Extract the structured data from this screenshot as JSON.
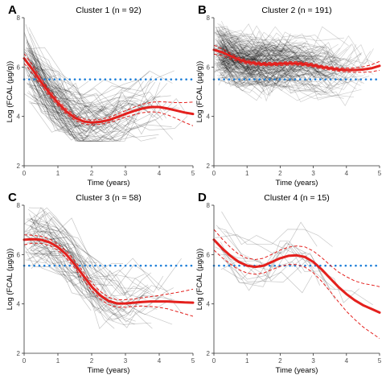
{
  "figure": {
    "letters": [
      "A",
      "B",
      "C",
      "D"
    ]
  },
  "chart_data": [
    {
      "type": "line",
      "title": "Cluster 1 (n = 92)",
      "xlabel": "Time (years)",
      "ylabel": "Log (FCAL (µg/g))",
      "xlim": [
        0,
        5
      ],
      "ylim": [
        2,
        8
      ],
      "xticks": [
        0,
        1,
        2,
        3,
        4,
        5
      ],
      "yticks": [
        2,
        4,
        6,
        8
      ],
      "reference_line": 5.5,
      "fit": {
        "x": [
          0,
          0.25,
          0.5,
          0.75,
          1,
          1.25,
          1.5,
          1.75,
          2,
          2.25,
          2.5,
          2.75,
          3,
          3.25,
          3.5,
          3.75,
          4,
          4.25,
          4.5,
          4.75,
          5
        ],
        "y": [
          6.35,
          5.9,
          5.4,
          4.95,
          4.55,
          4.2,
          3.95,
          3.8,
          3.75,
          3.78,
          3.85,
          3.97,
          4.1,
          4.22,
          4.32,
          4.38,
          4.38,
          4.32,
          4.24,
          4.16,
          4.1
        ],
        "ci_halfwidth": [
          0.2,
          0.17,
          0.15,
          0.13,
          0.12,
          0.11,
          0.1,
          0.1,
          0.1,
          0.1,
          0.11,
          0.12,
          0.13,
          0.15,
          0.17,
          0.19,
          0.22,
          0.26,
          0.32,
          0.4,
          0.48
        ]
      },
      "individual": {
        "count": 92,
        "floor": 3.0,
        "spread": 0.9
      }
    },
    {
      "type": "line",
      "title": "Cluster 2 (n = 191)",
      "xlabel": "Time (years)",
      "ylabel": "Log (FCAL (µg/g))",
      "xlim": [
        0,
        5
      ],
      "ylim": [
        2,
        8
      ],
      "xticks": [
        0,
        1,
        2,
        3,
        4,
        5
      ],
      "yticks": [
        2,
        4,
        6,
        8
      ],
      "reference_line": 5.5,
      "fit": {
        "x": [
          0,
          0.25,
          0.5,
          0.75,
          1,
          1.25,
          1.5,
          1.75,
          2,
          2.25,
          2.5,
          2.75,
          3,
          3.25,
          3.5,
          3.75,
          4,
          4.25,
          4.5,
          4.75,
          5
        ],
        "y": [
          6.7,
          6.6,
          6.45,
          6.3,
          6.2,
          6.15,
          6.12,
          6.12,
          6.13,
          6.15,
          6.15,
          6.12,
          6.07,
          6.0,
          5.95,
          5.9,
          5.88,
          5.88,
          5.9,
          5.95,
          6.05
        ],
        "ci_halfwidth": [
          0.18,
          0.14,
          0.11,
          0.09,
          0.08,
          0.07,
          0.07,
          0.07,
          0.07,
          0.07,
          0.07,
          0.07,
          0.07,
          0.07,
          0.07,
          0.07,
          0.08,
          0.09,
          0.11,
          0.14,
          0.18
        ]
      },
      "individual": {
        "count": 191,
        "floor": 3.0,
        "spread": 0.75
      }
    },
    {
      "type": "line",
      "title": "Cluster 3 (n = 58)",
      "xlabel": "Time (years)",
      "ylabel": "Log (FCAL (µg/g))",
      "xlim": [
        0,
        5
      ],
      "ylim": [
        2,
        8
      ],
      "xticks": [
        0,
        1,
        2,
        3,
        4,
        5
      ],
      "yticks": [
        2,
        4,
        6,
        8
      ],
      "reference_line": 5.55,
      "fit": {
        "x": [
          0,
          0.25,
          0.5,
          0.75,
          1,
          1.25,
          1.5,
          1.75,
          2,
          2.25,
          2.5,
          2.75,
          3,
          3.25,
          3.5,
          3.75,
          4,
          4.25,
          4.5,
          4.75,
          5
        ],
        "y": [
          6.6,
          6.62,
          6.6,
          6.5,
          6.3,
          6.0,
          5.6,
          5.15,
          4.7,
          4.35,
          4.12,
          4.02,
          4.02,
          4.05,
          4.08,
          4.1,
          4.1,
          4.1,
          4.08,
          4.06,
          4.05
        ],
        "ci_halfwidth": [
          0.2,
          0.16,
          0.14,
          0.13,
          0.13,
          0.14,
          0.15,
          0.16,
          0.16,
          0.16,
          0.15,
          0.15,
          0.15,
          0.15,
          0.17,
          0.2,
          0.24,
          0.3,
          0.38,
          0.46,
          0.55
        ]
      },
      "individual": {
        "count": 58,
        "floor": 3.0,
        "spread": 0.85
      }
    },
    {
      "type": "line",
      "title": "Cluster 4 (n = 15)",
      "xlabel": "Time (years)",
      "ylabel": "Log (FCAL (µg/g))",
      "xlim": [
        0,
        5
      ],
      "ylim": [
        2,
        8
      ],
      "xticks": [
        0,
        1,
        2,
        3,
        4,
        5
      ],
      "yticks": [
        2,
        4,
        6,
        8
      ],
      "reference_line": 5.55,
      "fit": {
        "x": [
          0,
          0.25,
          0.5,
          0.75,
          1,
          1.25,
          1.5,
          1.75,
          2,
          2.25,
          2.5,
          2.75,
          3,
          3.25,
          3.5,
          3.75,
          4,
          4.25,
          4.5,
          4.75,
          5
        ],
        "y": [
          6.6,
          6.25,
          5.95,
          5.7,
          5.55,
          5.5,
          5.55,
          5.7,
          5.85,
          5.95,
          5.97,
          5.9,
          5.7,
          5.4,
          5.05,
          4.7,
          4.4,
          4.15,
          3.95,
          3.8,
          3.65
        ],
        "ci_halfwidth": [
          0.42,
          0.38,
          0.34,
          0.31,
          0.3,
          0.3,
          0.3,
          0.31,
          0.33,
          0.35,
          0.38,
          0.41,
          0.44,
          0.48,
          0.53,
          0.6,
          0.7,
          0.78,
          0.88,
          0.97,
          1.05
        ]
      },
      "individual": {
        "count": 15,
        "floor": 3.0,
        "spread": 0.9
      }
    }
  ],
  "colors": {
    "fit": "#e4201d",
    "reference": "#1e7fd8",
    "individual": "#000000",
    "axis": "#333333",
    "text": "#000000"
  }
}
